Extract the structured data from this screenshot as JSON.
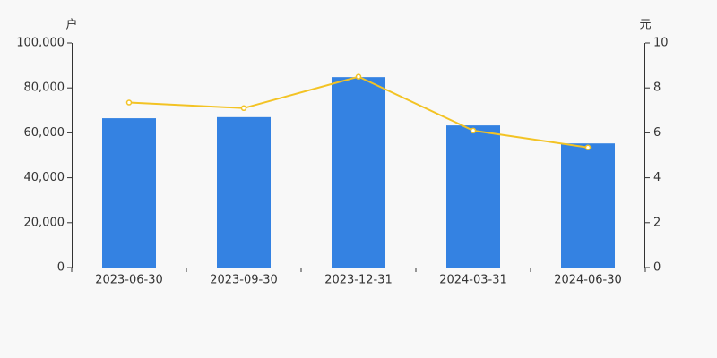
{
  "chart_data": {
    "type": "bar",
    "y_label": "户",
    "y2_label": "元",
    "categories": [
      "2023-06-30",
      "2023-09-30",
      "2023-12-31",
      "2024-03-31",
      "2024-06-30"
    ],
    "series": [
      {
        "type": "bar",
        "color": "#3482e2",
        "values": [
          66500,
          67000,
          84800,
          63300,
          55300
        ]
      },
      {
        "type": "line",
        "axis": "y2",
        "color": "#f3c324",
        "values": [
          7.35,
          7.1,
          8.5,
          6.1,
          5.35
        ]
      }
    ],
    "ylim": [
      0,
      100000
    ],
    "yticks": [
      0,
      {
        "value": 20000,
        "label": "20,000"
      },
      {
        "value": 40000,
        "label": "40,000"
      },
      {
        "value": 60000,
        "label": "60,000"
      },
      {
        "value": 80000,
        "label": "80,000"
      },
      {
        "value": 100000,
        "label": "100,000"
      }
    ],
    "y2lim": [
      0,
      10
    ],
    "y2ticks": [
      0,
      2,
      4,
      6,
      8,
      10
    ],
    "grid": false
  }
}
